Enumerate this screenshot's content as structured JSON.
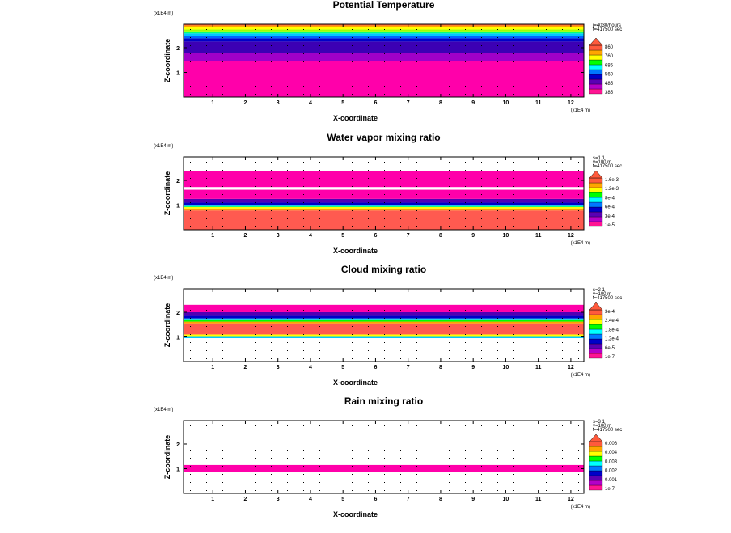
{
  "chart_data": [
    {
      "type": "heatmap",
      "title": "Potential Temperature",
      "xlabel": "X-coordinate",
      "ylabel": "Z-coordinate",
      "x_unit": "(x1E4 m)",
      "z_unit": "(x1E4 m)",
      "xlim": [
        0.1,
        12.4
      ],
      "zlim": [
        0.0,
        2.95
      ],
      "x_ticks": [
        "1",
        "2",
        "3",
        "4",
        "5",
        "6",
        "7",
        "8",
        "9",
        "10",
        "11",
        "12"
      ],
      "z_ticks": [
        "1",
        "2"
      ],
      "info": [
        "j=4030/hours",
        "t=417500 sec"
      ],
      "colorbar_labels": [
        "860",
        "760",
        "685",
        "560",
        "485",
        "385"
      ],
      "colorbar_colors": [
        "#ff1493",
        "#b400c8",
        "#5a00b4",
        "#0000c8",
        "#0078ff",
        "#00ffff",
        "#00ff00",
        "#ffff00",
        "#ffa500",
        "#ff5a3c"
      ],
      "bands": [
        {
          "z0": 0.0,
          "z1": 1.45,
          "color": "#ff00aa"
        },
        {
          "z0": 1.45,
          "z1": 1.78,
          "color": "#a000c8"
        },
        {
          "z0": 1.78,
          "z1": 2.25,
          "color": "#3c00b4"
        },
        {
          "z0": 2.25,
          "z1": 2.38,
          "color": "#0000c8"
        },
        {
          "z0": 2.38,
          "z1": 2.48,
          "color": "#0064ff"
        },
        {
          "z0": 2.48,
          "z1": 2.58,
          "color": "#00c8ff"
        },
        {
          "z0": 2.58,
          "z1": 2.66,
          "color": "#00ff80"
        },
        {
          "z0": 2.66,
          "z1": 2.74,
          "color": "#a0ff00"
        },
        {
          "z0": 2.74,
          "z1": 2.82,
          "color": "#ffff00"
        },
        {
          "z0": 2.82,
          "z1": 2.9,
          "color": "#ffa500"
        },
        {
          "z0": 2.9,
          "z1": 2.95,
          "color": "#ff6440"
        }
      ]
    },
    {
      "type": "heatmap",
      "title": "Water vapor mixing ratio",
      "xlabel": "X-coordinate",
      "ylabel": "Z-coordinate",
      "x_unit": "(x1E4 m)",
      "z_unit": "(x1E4 m)",
      "xlim": [
        0.1,
        12.4
      ],
      "zlim": [
        0.0,
        2.95
      ],
      "x_ticks": [
        "1",
        "2",
        "3",
        "4",
        "5",
        "6",
        "7",
        "8",
        "9",
        "10",
        "11",
        "12"
      ],
      "z_ticks": [
        "1",
        "2"
      ],
      "info": [
        "s=1 1",
        "y=100 m",
        "t=417500 sec"
      ],
      "colorbar_labels": [
        "1.6e-3",
        "1.2e-3",
        "8e-4",
        "6e-4",
        "3e-4",
        "1e-5"
      ],
      "colorbar_colors": [
        "#ff1493",
        "#b400c8",
        "#5a00b4",
        "#0000c8",
        "#0078ff",
        "#00ffff",
        "#00ff00",
        "#ffff00",
        "#ffa500",
        "#ff5a3c"
      ],
      "bands": [
        {
          "z0": 0.0,
          "z1": 0.78,
          "color": "#ff5a50"
        },
        {
          "z0": 0.78,
          "z1": 0.86,
          "color": "#ffa000"
        },
        {
          "z0": 0.86,
          "z1": 0.92,
          "color": "#ffff00"
        },
        {
          "z0": 0.92,
          "z1": 0.96,
          "color": "#00ff80"
        },
        {
          "z0": 0.96,
          "z1": 1.0,
          "color": "#00aaff"
        },
        {
          "z0": 1.0,
          "z1": 1.1,
          "color": "#0000c8"
        },
        {
          "z0": 1.1,
          "z1": 1.25,
          "color": "#5000b4"
        },
        {
          "z0": 1.25,
          "z1": 1.62,
          "color": "#ff00aa"
        },
        {
          "z0": 1.73,
          "z1": 2.38,
          "color": "#ff00aa"
        }
      ]
    },
    {
      "type": "heatmap",
      "title": "Cloud mixing ratio",
      "xlabel": "X-coordinate",
      "ylabel": "Z-coordinate",
      "x_unit": "(x1E4 m)",
      "z_unit": "(x1E4 m)",
      "xlim": [
        0.1,
        12.4
      ],
      "zlim": [
        0.0,
        2.95
      ],
      "x_ticks": [
        "1",
        "2",
        "3",
        "4",
        "5",
        "6",
        "7",
        "8",
        "9",
        "10",
        "11",
        "12"
      ],
      "z_ticks": [
        "1",
        "2"
      ],
      "info": [
        "s=2 1",
        "y=100 m",
        "t=417500 sec"
      ],
      "colorbar_labels": [
        "3e-4",
        "2.4e-4",
        "1.8e-4",
        "1.2e-4",
        "6e-5",
        "1e-7"
      ],
      "colorbar_colors": [
        "#ff1493",
        "#b400c8",
        "#5a00b4",
        "#0000c8",
        "#0078ff",
        "#00ffff",
        "#00ff00",
        "#ffff00",
        "#ffa500",
        "#ff5a3c"
      ],
      "bands": [
        {
          "z0": 0.95,
          "z1": 1.0,
          "color": "#00c8ff"
        },
        {
          "z0": 1.0,
          "z1": 1.1,
          "color": "#ffff00"
        },
        {
          "z0": 1.1,
          "z1": 1.55,
          "color": "#ff5a50"
        },
        {
          "z0": 1.55,
          "z1": 1.62,
          "color": "#ffa000"
        },
        {
          "z0": 1.62,
          "z1": 1.68,
          "color": "#00ff00"
        },
        {
          "z0": 1.68,
          "z1": 1.75,
          "color": "#00c8ff"
        },
        {
          "z0": 1.75,
          "z1": 1.85,
          "color": "#0000c8"
        },
        {
          "z0": 1.85,
          "z1": 2.0,
          "color": "#5000b4"
        },
        {
          "z0": 2.0,
          "z1": 2.3,
          "color": "#ff00aa"
        }
      ]
    },
    {
      "type": "heatmap",
      "title": "Rain mixing ratio",
      "xlabel": "X-coordinate",
      "ylabel": "Z-coordinate",
      "x_unit": "(x1E4 m)",
      "z_unit": "(x1E4 m)",
      "xlim": [
        0.1,
        12.4
      ],
      "zlim": [
        0.0,
        2.95
      ],
      "x_ticks": [
        "1",
        "2",
        "3",
        "4",
        "5",
        "6",
        "7",
        "8",
        "9",
        "10",
        "11",
        "12"
      ],
      "z_ticks": [
        "1",
        "2"
      ],
      "info": [
        "s=3 1",
        "y=100 m",
        "t=417500 sec"
      ],
      "colorbar_labels": [
        "0.006",
        "0.004",
        "0.003",
        "0.002",
        "0.001",
        "1e-7"
      ],
      "colorbar_colors": [
        "#ff1493",
        "#b400c8",
        "#5a00b4",
        "#0000c8",
        "#0078ff",
        "#00ffff",
        "#00ff00",
        "#ffff00",
        "#ffa500",
        "#ff5a3c"
      ],
      "bands": [
        {
          "z0": 0.88,
          "z1": 1.15,
          "color": "#ff00aa"
        }
      ]
    }
  ]
}
